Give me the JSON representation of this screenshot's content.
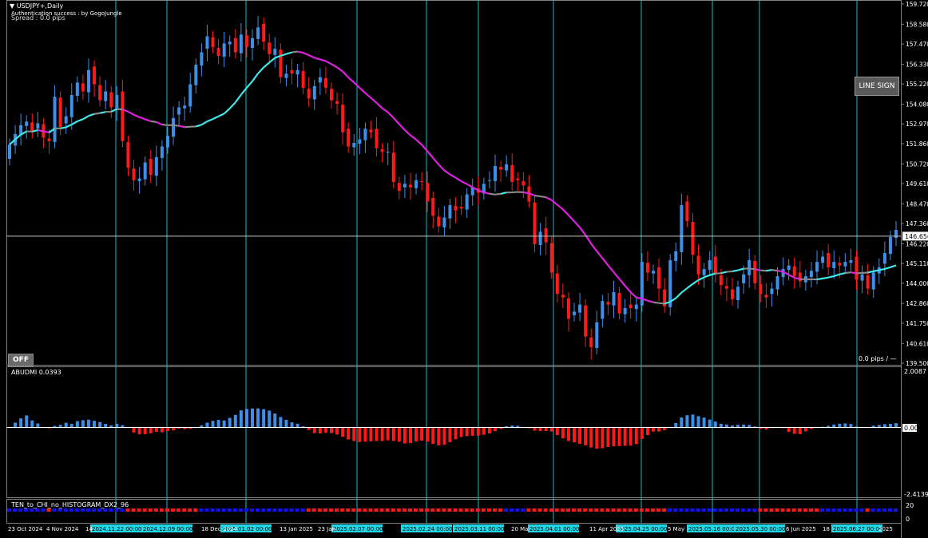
{
  "header": {
    "symbol": "USDJPY+,Daily",
    "auth": "Authentication success : by GogoJungle",
    "spread": "Spread : 0.0 pips",
    "pips_readout": "0.0 pips  /  —"
  },
  "buttons": {
    "line_sign": "LINE SIGN",
    "off": "OFF"
  },
  "sub1": {
    "title": "ABUDMI  0.0393",
    "max_label": "2.0087",
    "zero_label": "0.00",
    "min_label": "-2.4139"
  },
  "sub2": {
    "title": "TEN_to_CHI_no_HISTOGRAM_DX2_96",
    "label_top": "20",
    "label_bottom": "0"
  },
  "colors": {
    "bull": "#3d8fe8",
    "bear": "#ff1a1a",
    "ma_up": "#40e8e8",
    "ma_down": "#e020e0",
    "ma_flat": "#888888",
    "vline": "#20b8c8",
    "grid": "#808080"
  },
  "chart_data": {
    "type": "candlestick",
    "title": "USDJPY+,Daily",
    "price_axis": [
      "159.720",
      "158.580",
      "157.470",
      "156.330",
      "155.220",
      "154.080",
      "152.970",
      "151.860",
      "150.720",
      "149.610",
      "148.470",
      "147.360",
      "146.220",
      "145.110",
      "144.000",
      "142.860",
      "141.750",
      "140.610",
      "139.500"
    ],
    "current_price": "146.650",
    "ylim": [
      139.5,
      159.72
    ],
    "date_axis": [
      "23 Oct 2024",
      "4 Nov 2024",
      "14",
      "18 Dec 2024",
      "13 Jan 2025",
      "23 Jan",
      "20 Ma",
      "11 Apr 2025",
      "5 May",
      "6 Jun 2025",
      "18",
      "2025"
    ],
    "marker_dates": [
      "2024.11.22 00:00",
      "2024.12.09 00:00",
      "2025.01.02 00:00",
      "2025.02.07 00:00",
      "2025.02.24 00:00",
      "2025.03.11 00:00",
      "2025.04.01 00:00",
      "2025.04.25 00:00",
      "2025.05.16 00:00",
      "2025.05.30 00:00",
      "2025.06.27 00:00"
    ],
    "closes": [
      151.8,
      152.4,
      152.9,
      153.1,
      152.5,
      153.0,
      152.2,
      152.0,
      154.5,
      152.8,
      153.4,
      154.6,
      155.3,
      154.8,
      156.0,
      155.2,
      154.3,
      154.8,
      153.9,
      154.6,
      152.0,
      150.5,
      149.8,
      149.9,
      150.8,
      150.1,
      151.1,
      151.7,
      152.3,
      153.3,
      153.9,
      154.0,
      155.2,
      156.3,
      157.0,
      157.9,
      157.3,
      156.8,
      157.5,
      157.6,
      157.0,
      158.0,
      157.3,
      157.8,
      158.4,
      157.6,
      156.9,
      157.2,
      155.6,
      155.8,
      155.8,
      156.0,
      155.0,
      154.4,
      155.1,
      155.6,
      155.0,
      154.3,
      154.1,
      152.5,
      151.7,
      151.9,
      152.1,
      152.7,
      152.5,
      151.6,
      151.4,
      151.4,
      149.7,
      149.2,
      149.6,
      149.4,
      149.8,
      149.7,
      148.6,
      147.8,
      147.2,
      147.7,
      148.4,
      148.1,
      148.2,
      149.0,
      149.4,
      149.1,
      149.6,
      149.8,
      150.6,
      150.4,
      150.7,
      149.7,
      149.8,
      149.5,
      148.6,
      146.2,
      146.9,
      146.3,
      144.6,
      143.4,
      143.2,
      142.0,
      142.4,
      142.8,
      141.0,
      140.4,
      141.8,
      143.0,
      142.8,
      143.5,
      142.3,
      142.6,
      142.6,
      142.8,
      145.2,
      144.6,
      144.7,
      143.7,
      142.7,
      145.3,
      145.8,
      148.4,
      147.5,
      145.6,
      144.5,
      144.8,
      145.3,
      144.5,
      143.9,
      143.7,
      143.1,
      143.8,
      144.5,
      145.3,
      144.0,
      143.4,
      143.2,
      143.7,
      144.4,
      144.8,
      145.0,
      144.4,
      144.1,
      144.4,
      144.7,
      145.2,
      145.5,
      144.9,
      145.2,
      145.0,
      145.2,
      145.3,
      144.2,
      144.5,
      143.7,
      144.6,
      144.9,
      145.7,
      146.6,
      147.0
    ]
  }
}
